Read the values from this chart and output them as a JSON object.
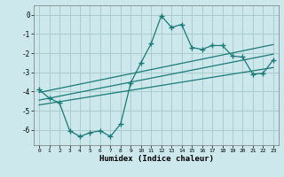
{
  "xlabel": "Humidex (Indice chaleur)",
  "bg_color": "#cce8ec",
  "grid_color": "#aacccc",
  "line_color": "#1a7a78",
  "xlim": [
    -0.5,
    23.5
  ],
  "ylim": [
    -6.8,
    0.5
  ],
  "yticks": [
    0,
    -1,
    -2,
    -3,
    -4,
    -5,
    -6
  ],
  "xticks": [
    0,
    1,
    2,
    3,
    4,
    5,
    6,
    7,
    8,
    9,
    10,
    11,
    12,
    13,
    14,
    15,
    16,
    17,
    18,
    19,
    20,
    21,
    22,
    23
  ],
  "line1_x": [
    0,
    1,
    2,
    3,
    4,
    5,
    6,
    7,
    8,
    9,
    10,
    11,
    12,
    13,
    14,
    15,
    16,
    17,
    18,
    19,
    20,
    21,
    22,
    23
  ],
  "line1_y": [
    -3.9,
    -4.35,
    -4.6,
    -6.05,
    -6.35,
    -6.15,
    -6.05,
    -6.35,
    -5.7,
    -3.55,
    -2.5,
    -1.5,
    -0.05,
    -0.65,
    -0.5,
    -1.7,
    -1.8,
    -1.6,
    -1.6,
    -2.15,
    -2.2,
    -3.1,
    -3.05,
    -2.35
  ],
  "line2_x": [
    0,
    23
  ],
  "line2_y": [
    -4.05,
    -1.55
  ],
  "line3_x": [
    0,
    23
  ],
  "line3_y": [
    -4.45,
    -2.05
  ],
  "line4_x": [
    0,
    23
  ],
  "line4_y": [
    -4.7,
    -2.75
  ]
}
